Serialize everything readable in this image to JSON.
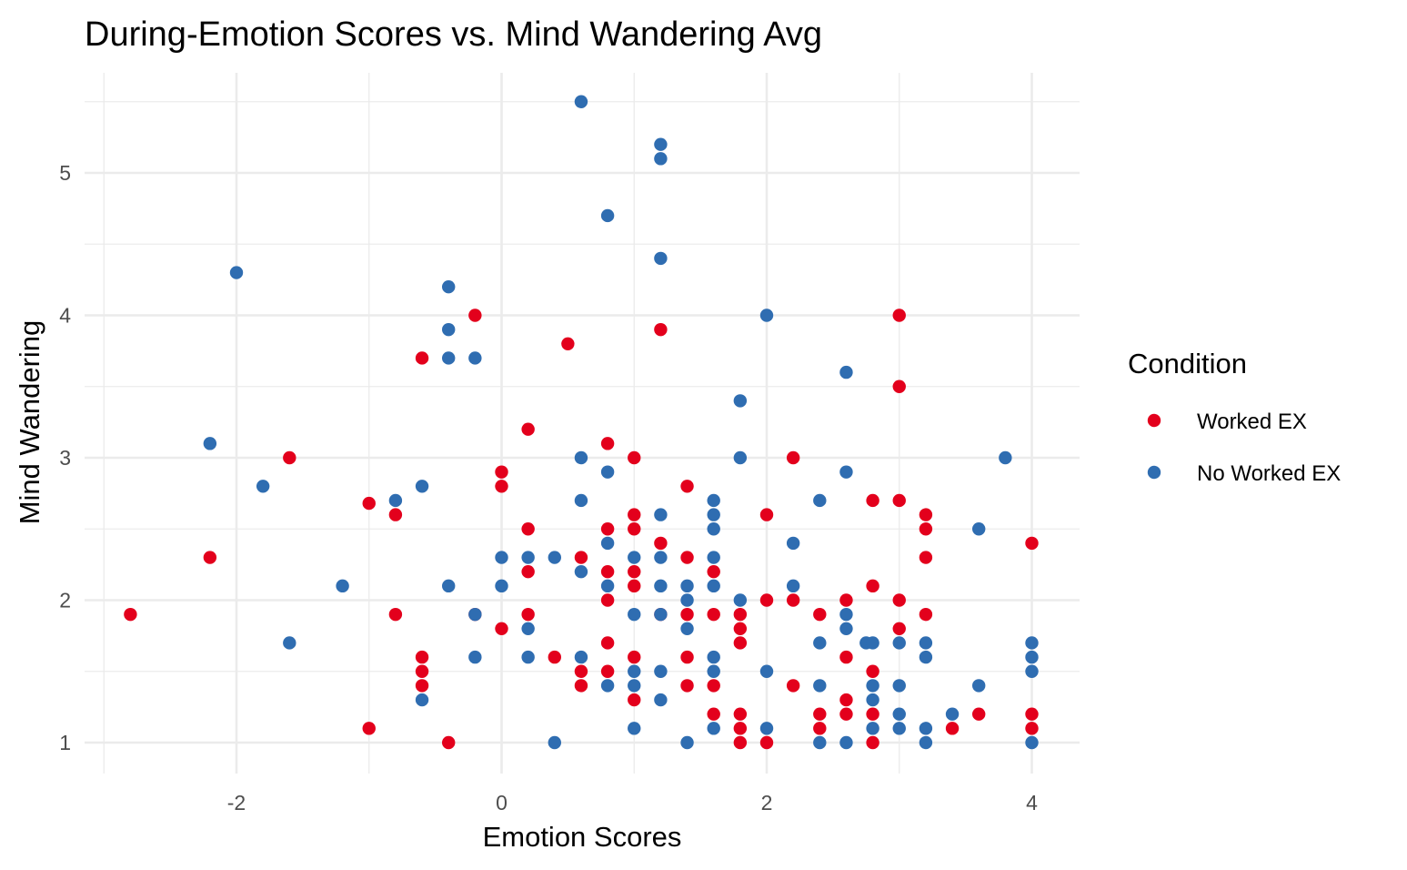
{
  "chart_data": {
    "type": "scatter",
    "title": "During-Emotion Scores vs. Mind Wandering Avg",
    "xlabel": "Emotion Scores",
    "ylabel": "Mind Wandering",
    "xlim": [
      -3.0,
      4.3
    ],
    "ylim": [
      0.83,
      5.66
    ],
    "x_ticks": [
      "-2",
      "0",
      "2",
      "4"
    ],
    "y_ticks": [
      "1",
      "2",
      "3",
      "4",
      "5"
    ],
    "grid": true,
    "legend": {
      "title": "Condition",
      "position": "right"
    },
    "series": [
      {
        "name": "Worked EX",
        "color": "#e3001c",
        "points": [
          [
            -2.8,
            1.9
          ],
          [
            -2.2,
            2.3
          ],
          [
            -1.6,
            3.0
          ],
          [
            -1.0,
            2.68
          ],
          [
            -1.0,
            1.1
          ],
          [
            -0.8,
            2.6
          ],
          [
            -0.8,
            1.9
          ],
          [
            -0.6,
            3.7
          ],
          [
            -0.6,
            1.6
          ],
          [
            -0.6,
            1.5
          ],
          [
            -0.6,
            1.4
          ],
          [
            -0.4,
            1.0
          ],
          [
            -0.2,
            4.0
          ],
          [
            -0.2,
            1.9
          ],
          [
            0.0,
            2.9
          ],
          [
            0.0,
            2.8
          ],
          [
            0.0,
            1.8
          ],
          [
            0.2,
            3.2
          ],
          [
            0.2,
            2.5
          ],
          [
            0.2,
            2.2
          ],
          [
            0.2,
            1.9
          ],
          [
            0.4,
            1.6
          ],
          [
            0.5,
            3.8
          ],
          [
            0.6,
            2.3
          ],
          [
            0.6,
            1.5
          ],
          [
            0.6,
            1.4
          ],
          [
            0.8,
            3.1
          ],
          [
            0.8,
            2.5
          ],
          [
            0.8,
            2.2
          ],
          [
            0.8,
            2.0
          ],
          [
            0.8,
            1.7
          ],
          [
            0.8,
            1.5
          ],
          [
            1.0,
            3.0
          ],
          [
            1.0,
            2.6
          ],
          [
            1.0,
            2.5
          ],
          [
            1.0,
            2.2
          ],
          [
            1.0,
            2.1
          ],
          [
            1.0,
            1.6
          ],
          [
            1.0,
            1.3
          ],
          [
            1.2,
            3.9
          ],
          [
            1.2,
            2.4
          ],
          [
            1.2,
            1.9
          ],
          [
            1.4,
            2.8
          ],
          [
            1.4,
            2.3
          ],
          [
            1.4,
            1.9
          ],
          [
            1.4,
            1.6
          ],
          [
            1.4,
            1.4
          ],
          [
            1.6,
            2.2
          ],
          [
            1.6,
            1.9
          ],
          [
            1.6,
            1.4
          ],
          [
            1.6,
            1.2
          ],
          [
            1.8,
            1.9
          ],
          [
            1.8,
            1.8
          ],
          [
            1.8,
            1.7
          ],
          [
            1.8,
            1.2
          ],
          [
            1.8,
            1.1
          ],
          [
            1.8,
            1.0
          ],
          [
            2.0,
            2.6
          ],
          [
            2.0,
            2.0
          ],
          [
            2.0,
            1.0
          ],
          [
            2.2,
            3.0
          ],
          [
            2.2,
            2.0
          ],
          [
            2.2,
            1.4
          ],
          [
            2.4,
            1.9
          ],
          [
            2.4,
            1.2
          ],
          [
            2.4,
            1.1
          ],
          [
            2.6,
            2.0
          ],
          [
            2.6,
            1.6
          ],
          [
            2.6,
            1.3
          ],
          [
            2.6,
            1.2
          ],
          [
            2.8,
            2.7
          ],
          [
            2.8,
            2.1
          ],
          [
            2.8,
            1.5
          ],
          [
            2.8,
            1.2
          ],
          [
            2.8,
            1.0
          ],
          [
            3.0,
            4.0
          ],
          [
            3.0,
            3.5
          ],
          [
            3.0,
            2.7
          ],
          [
            3.0,
            2.0
          ],
          [
            3.0,
            1.8
          ],
          [
            3.2,
            2.6
          ],
          [
            3.2,
            2.5
          ],
          [
            3.2,
            2.3
          ],
          [
            3.2,
            1.9
          ],
          [
            3.4,
            1.1
          ],
          [
            3.6,
            1.2
          ],
          [
            4.0,
            2.4
          ],
          [
            4.0,
            1.2
          ],
          [
            4.0,
            1.1
          ]
        ]
      },
      {
        "name": "No Worked EX",
        "color": "#2f6db1",
        "points": [
          [
            -2.2,
            3.1
          ],
          [
            -2.0,
            4.3
          ],
          [
            -1.8,
            2.8
          ],
          [
            -1.6,
            1.7
          ],
          [
            -1.2,
            2.1
          ],
          [
            -0.8,
            2.7
          ],
          [
            -0.6,
            2.8
          ],
          [
            -0.6,
            1.3
          ],
          [
            -0.4,
            4.2
          ],
          [
            -0.4,
            3.9
          ],
          [
            -0.4,
            3.7
          ],
          [
            -0.4,
            2.1
          ],
          [
            -0.2,
            3.7
          ],
          [
            -0.2,
            1.9
          ],
          [
            -0.2,
            1.6
          ],
          [
            0.0,
            2.3
          ],
          [
            0.0,
            2.1
          ],
          [
            0.2,
            2.3
          ],
          [
            0.2,
            1.8
          ],
          [
            0.2,
            1.6
          ],
          [
            0.4,
            2.3
          ],
          [
            0.4,
            1.0
          ],
          [
            0.6,
            5.5
          ],
          [
            0.6,
            3.0
          ],
          [
            0.6,
            2.7
          ],
          [
            0.6,
            2.2
          ],
          [
            0.6,
            1.6
          ],
          [
            0.8,
            4.7
          ],
          [
            0.8,
            2.9
          ],
          [
            0.8,
            2.4
          ],
          [
            0.8,
            2.1
          ],
          [
            0.8,
            1.4
          ],
          [
            1.0,
            2.3
          ],
          [
            1.0,
            1.9
          ],
          [
            1.0,
            1.5
          ],
          [
            1.0,
            1.4
          ],
          [
            1.0,
            1.1
          ],
          [
            1.2,
            5.2
          ],
          [
            1.2,
            5.1
          ],
          [
            1.2,
            4.4
          ],
          [
            1.2,
            2.6
          ],
          [
            1.2,
            2.3
          ],
          [
            1.2,
            2.1
          ],
          [
            1.2,
            1.9
          ],
          [
            1.2,
            1.5
          ],
          [
            1.2,
            1.3
          ],
          [
            1.4,
            2.1
          ],
          [
            1.4,
            2.0
          ],
          [
            1.4,
            1.8
          ],
          [
            1.4,
            1.0
          ],
          [
            1.6,
            2.7
          ],
          [
            1.6,
            2.6
          ],
          [
            1.6,
            2.5
          ],
          [
            1.6,
            2.3
          ],
          [
            1.6,
            2.1
          ],
          [
            1.6,
            1.6
          ],
          [
            1.6,
            1.5
          ],
          [
            1.6,
            1.1
          ],
          [
            1.8,
            3.4
          ],
          [
            1.8,
            3.0
          ],
          [
            1.8,
            2.0
          ],
          [
            2.0,
            4.0
          ],
          [
            2.0,
            1.5
          ],
          [
            2.0,
            1.1
          ],
          [
            2.2,
            2.4
          ],
          [
            2.2,
            2.1
          ],
          [
            2.4,
            2.7
          ],
          [
            2.4,
            1.7
          ],
          [
            2.4,
            1.4
          ],
          [
            2.4,
            1.0
          ],
          [
            2.6,
            3.6
          ],
          [
            2.6,
            2.9
          ],
          [
            2.6,
            1.9
          ],
          [
            2.6,
            1.8
          ],
          [
            2.6,
            1.0
          ],
          [
            2.75,
            1.7
          ],
          [
            2.8,
            1.7
          ],
          [
            2.8,
            1.4
          ],
          [
            2.8,
            1.3
          ],
          [
            2.8,
            1.1
          ],
          [
            3.0,
            1.7
          ],
          [
            3.0,
            1.4
          ],
          [
            3.0,
            1.2
          ],
          [
            3.0,
            1.1
          ],
          [
            3.2,
            1.7
          ],
          [
            3.2,
            1.6
          ],
          [
            3.2,
            1.1
          ],
          [
            3.2,
            1.0
          ],
          [
            3.4,
            1.2
          ],
          [
            3.6,
            2.5
          ],
          [
            3.6,
            1.4
          ],
          [
            3.8,
            3.0
          ],
          [
            4.0,
            1.7
          ],
          [
            4.0,
            1.6
          ],
          [
            4.0,
            1.5
          ],
          [
            4.0,
            1.0
          ]
        ]
      }
    ]
  }
}
